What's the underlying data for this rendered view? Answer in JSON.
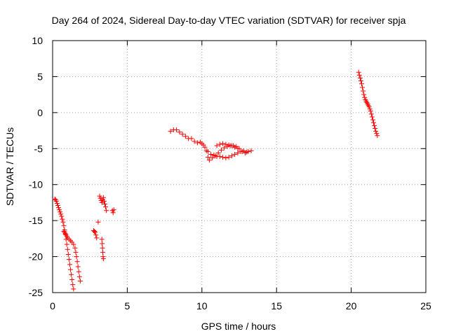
{
  "chart_data": {
    "type": "scatter",
    "title": "Day 264 of 2024, Sidereal Day-to-day VTEC variation (SDTVAR) for receiver spja",
    "xlabel": "GPS time / hours",
    "ylabel": "SDTVAR / TECUs",
    "xlim": [
      0,
      25
    ],
    "ylim": [
      -25,
      10
    ],
    "xticks": [
      0,
      5,
      10,
      15,
      20,
      25
    ],
    "yticks": [
      -25,
      -20,
      -15,
      -10,
      -5,
      0,
      5,
      10
    ],
    "xtick_labels": [
      "0",
      "5",
      "10",
      "15",
      "20",
      "25"
    ],
    "ytick_labels": [
      "-25",
      "-20",
      "-15",
      "-10",
      "-5",
      "0",
      "5",
      "10"
    ],
    "grid": true,
    "marker": "plus",
    "marker_color": "#ff0000",
    "series": [
      {
        "name": "SDTVAR",
        "segments": [
          [
            [
              0.15,
              -12.0
            ],
            [
              0.2,
              -12.1
            ],
            [
              0.25,
              -12.3
            ],
            [
              0.3,
              -12.6
            ],
            [
              0.35,
              -12.9
            ],
            [
              0.4,
              -13.2
            ],
            [
              0.45,
              -13.5
            ],
            [
              0.5,
              -13.8
            ],
            [
              0.55,
              -14.1
            ],
            [
              0.6,
              -14.4
            ],
            [
              0.65,
              -14.8
            ],
            [
              0.7,
              -15.2
            ],
            [
              0.75,
              -15.7
            ],
            [
              0.8,
              -16.3
            ],
            [
              0.85,
              -16.9
            ],
            [
              0.9,
              -17.6
            ],
            [
              0.95,
              -18.3
            ],
            [
              1.0,
              -19.0
            ],
            [
              1.05,
              -19.7
            ],
            [
              1.1,
              -20.4
            ],
            [
              1.15,
              -21.1
            ],
            [
              1.2,
              -21.8
            ],
            [
              1.25,
              -22.5
            ],
            [
              1.3,
              -23.2
            ],
            [
              1.35,
              -23.9
            ],
            [
              1.4,
              -24.5
            ]
          ],
          [
            [
              0.75,
              -16.5
            ],
            [
              0.8,
              -16.6
            ],
            [
              0.85,
              -16.8
            ],
            [
              0.9,
              -17.0
            ],
            [
              0.95,
              -17.2
            ],
            [
              1.0,
              -17.4
            ],
            [
              1.1,
              -17.6
            ],
            [
              1.2,
              -17.8
            ],
            [
              1.3,
              -18.0
            ],
            [
              1.4,
              -18.3
            ],
            [
              1.5,
              -18.8
            ],
            [
              1.55,
              -19.4
            ],
            [
              1.6,
              -20.0
            ],
            [
              1.65,
              -20.7
            ],
            [
              1.7,
              -21.4
            ],
            [
              1.75,
              -22.1
            ],
            [
              1.8,
              -22.8
            ],
            [
              1.85,
              -23.4
            ]
          ],
          [
            [
              2.75,
              -16.4
            ],
            [
              2.8,
              -16.5
            ],
            [
              2.85,
              -16.6
            ],
            [
              2.9,
              -17.0
            ],
            [
              2.95,
              -17.4
            ]
          ],
          [
            [
              3.05,
              -15.2
            ]
          ],
          [
            [
              3.15,
              -11.6
            ],
            [
              3.2,
              -11.9
            ],
            [
              3.25,
              -12.2
            ],
            [
              3.3,
              -12.5
            ],
            [
              3.35,
              -12.1
            ],
            [
              3.4,
              -11.8
            ],
            [
              3.45,
              -12.3
            ],
            [
              3.5,
              -12.7
            ],
            [
              3.55,
              -13.1
            ],
            [
              3.6,
              -13.6
            ]
          ],
          [
            [
              3.3,
              -17.6
            ],
            [
              3.32,
              -18.2
            ],
            [
              3.34,
              -18.8
            ],
            [
              3.36,
              -19.4
            ],
            [
              3.38,
              -20.0
            ],
            [
              3.4,
              -20.3
            ]
          ],
          [
            [
              4.0,
              -13.6
            ],
            [
              4.05,
              -13.9
            ],
            [
              4.1,
              -13.5
            ]
          ],
          [
            [
              7.9,
              -2.6
            ],
            [
              8.1,
              -2.4
            ],
            [
              8.3,
              -2.4
            ],
            [
              8.5,
              -2.7
            ],
            [
              8.7,
              -3.0
            ],
            [
              8.9,
              -3.3
            ],
            [
              9.1,
              -3.6
            ],
            [
              9.3,
              -3.6
            ],
            [
              9.5,
              -4.0
            ],
            [
              9.7,
              -4.2
            ],
            [
              9.9,
              -4.1
            ],
            [
              10.1,
              -4.5
            ],
            [
              10.3,
              -5.3
            ],
            [
              10.4,
              -6.2
            ],
            [
              10.5,
              -6.6
            ],
            [
              10.7,
              -6.3
            ],
            [
              10.9,
              -6.0
            ],
            [
              11.1,
              -5.6
            ],
            [
              11.3,
              -5.2
            ],
            [
              11.5,
              -4.9
            ],
            [
              11.7,
              -4.7
            ],
            [
              11.9,
              -4.6
            ],
            [
              12.1,
              -4.6
            ],
            [
              12.3,
              -4.7
            ],
            [
              12.5,
              -5.0
            ],
            [
              12.7,
              -5.4
            ],
            [
              12.9,
              -5.6
            ],
            [
              13.1,
              -5.4
            ],
            [
              13.3,
              -5.3
            ]
          ],
          [
            [
              10.0,
              -4.3
            ],
            [
              10.2,
              -4.8
            ],
            [
              10.4,
              -5.4
            ],
            [
              10.6,
              -5.8
            ],
            [
              10.8,
              -5.9
            ],
            [
              11.0,
              -6.1
            ],
            [
              11.2,
              -6.1
            ],
            [
              11.4,
              -6.2
            ],
            [
              11.6,
              -6.3
            ],
            [
              11.8,
              -6.2
            ],
            [
              12.0,
              -6.0
            ],
            [
              12.2,
              -5.8
            ],
            [
              12.4,
              -5.6
            ],
            [
              12.6,
              -5.4
            ],
            [
              12.8,
              -5.3
            ],
            [
              13.0,
              -5.5
            ]
          ],
          [
            [
              11.0,
              -4.6
            ],
            [
              11.2,
              -4.4
            ],
            [
              11.4,
              -4.3
            ],
            [
              11.6,
              -4.4
            ],
            [
              11.8,
              -4.5
            ],
            [
              12.0,
              -4.6
            ],
            [
              12.2,
              -4.8
            ],
            [
              12.4,
              -5.0
            ]
          ],
          [
            [
              20.5,
              5.6
            ],
            [
              20.55,
              5.2
            ],
            [
              20.6,
              4.8
            ],
            [
              20.65,
              4.4
            ],
            [
              20.7,
              4.0
            ],
            [
              20.75,
              3.5
            ],
            [
              20.8,
              3.0
            ],
            [
              20.85,
              2.5
            ],
            [
              20.9,
              2.1
            ],
            [
              20.95,
              1.8
            ],
            [
              21.0,
              1.6
            ],
            [
              21.05,
              1.4
            ],
            [
              21.1,
              1.2
            ],
            [
              21.15,
              1.0
            ],
            [
              21.2,
              0.8
            ],
            [
              21.25,
              0.5
            ],
            [
              21.3,
              0.2
            ],
            [
              21.35,
              -0.2
            ],
            [
              21.4,
              -0.6
            ],
            [
              21.45,
              -1.0
            ],
            [
              21.5,
              -1.4
            ],
            [
              21.55,
              -1.8
            ],
            [
              21.6,
              -2.2
            ],
            [
              21.65,
              -2.6
            ],
            [
              21.7,
              -2.9
            ],
            [
              21.75,
              -3.2
            ]
          ]
        ]
      }
    ]
  }
}
